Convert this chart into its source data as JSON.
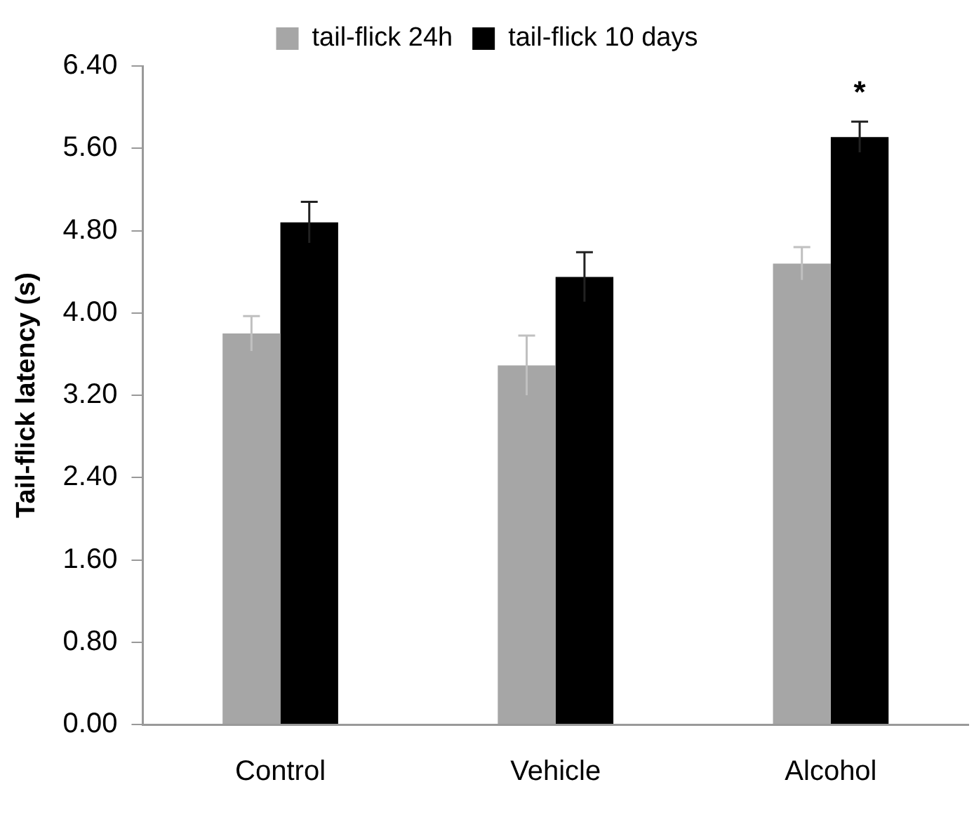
{
  "chart_data": {
    "type": "bar",
    "ylabel": "Tail-flick latency (s)",
    "categories": [
      "Control",
      "Vehicle",
      "Alcohol"
    ],
    "series": [
      {
        "name": "tail-flick 24h",
        "color": "#a6a6a6",
        "values": [
          3.8,
          3.49,
          4.48
        ],
        "errors": [
          0.17,
          0.29,
          0.16
        ]
      },
      {
        "name": "tail-flick 10 days",
        "color": "#000000",
        "values": [
          4.88,
          4.35,
          5.71
        ],
        "errors": [
          0.2,
          0.24,
          0.15
        ]
      }
    ],
    "ylim": [
      0,
      6.4
    ],
    "yticks": [
      {
        "value": 0,
        "label": "0.00"
      },
      {
        "value": 0.8,
        "label": "0.80"
      },
      {
        "value": 1.6,
        "label": "1.60"
      },
      {
        "value": 2.4,
        "label": "2.40"
      },
      {
        "value": 3.2,
        "label": "3.20"
      },
      {
        "value": 4,
        "label": "4.00"
      },
      {
        "value": 4.8,
        "label": "4.80"
      },
      {
        "value": 5.6,
        "label": "5.60"
      },
      {
        "value": 6.4,
        "label": "6.40"
      }
    ],
    "annotations": [
      "*"
    ],
    "grid": false,
    "legend": "top"
  }
}
